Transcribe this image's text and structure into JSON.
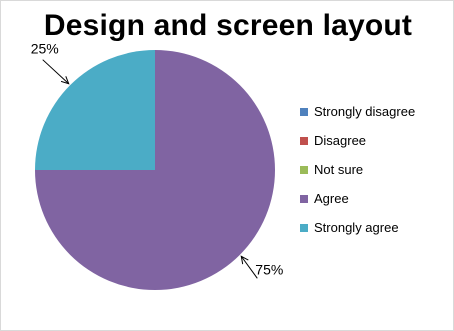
{
  "chart_data": {
    "type": "pie",
    "title": "Design and screen layout",
    "categories": [
      "Strongly disagree",
      "Disagree",
      "Not sure",
      "Agree",
      "Strongly agree"
    ],
    "values": [
      0,
      0,
      0,
      75,
      25
    ],
    "data_labels": [
      "",
      "",
      "",
      "75%",
      "25%"
    ],
    "colors": [
      "#4f81bd",
      "#c0504d",
      "#9bbb59",
      "#8064a2",
      "#4bacc6"
    ],
    "legend_position": "right"
  }
}
